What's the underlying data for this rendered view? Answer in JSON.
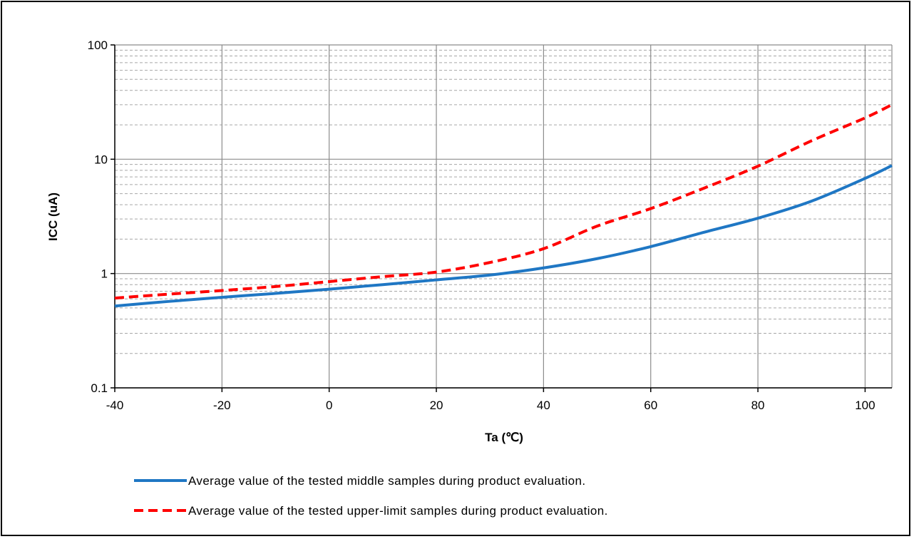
{
  "chart_data": {
    "type": "line",
    "xlabel": "Ta (℃)",
    "ylabel": "ICC (uA)",
    "xlim": [
      -40,
      105
    ],
    "ylim": [
      0.1,
      100
    ],
    "yscale": "log",
    "grid": true,
    "x_ticks": [
      -40,
      -20,
      0,
      20,
      40,
      60,
      80,
      100
    ],
    "x_tick_labels": [
      "-40",
      "-20",
      "0",
      "20",
      "40",
      "60",
      "80",
      "100"
    ],
    "y_ticks": [
      0.1,
      1,
      10,
      100
    ],
    "y_tick_labels": [
      "0.1",
      "1",
      "10",
      "100"
    ],
    "legend_position": "bottom",
    "series": [
      {
        "name": "Average value of the tested middle samples during product evaluation.",
        "color": "#1f77c4",
        "style": "solid",
        "x": [
          -40,
          -30,
          -20,
          -10,
          0,
          10,
          20,
          30,
          40,
          50,
          60,
          70,
          80,
          90,
          100,
          105
        ],
        "y": [
          0.52,
          0.57,
          0.62,
          0.67,
          0.73,
          0.8,
          0.88,
          0.97,
          1.12,
          1.35,
          1.72,
          2.3,
          3.05,
          4.3,
          6.8,
          8.8
        ]
      },
      {
        "name": "Average value of the tested upper-limit samples during product evaluation.",
        "color": "#ff0000",
        "style": "dashed",
        "x": [
          -40,
          -30,
          -20,
          -10,
          0,
          10,
          20,
          30,
          40,
          50,
          60,
          70,
          80,
          90,
          100,
          105
        ],
        "y": [
          0.61,
          0.66,
          0.71,
          0.77,
          0.85,
          0.94,
          1.03,
          1.25,
          1.65,
          2.6,
          3.7,
          5.6,
          8.7,
          14.5,
          23.0,
          30.0
        ]
      }
    ]
  }
}
